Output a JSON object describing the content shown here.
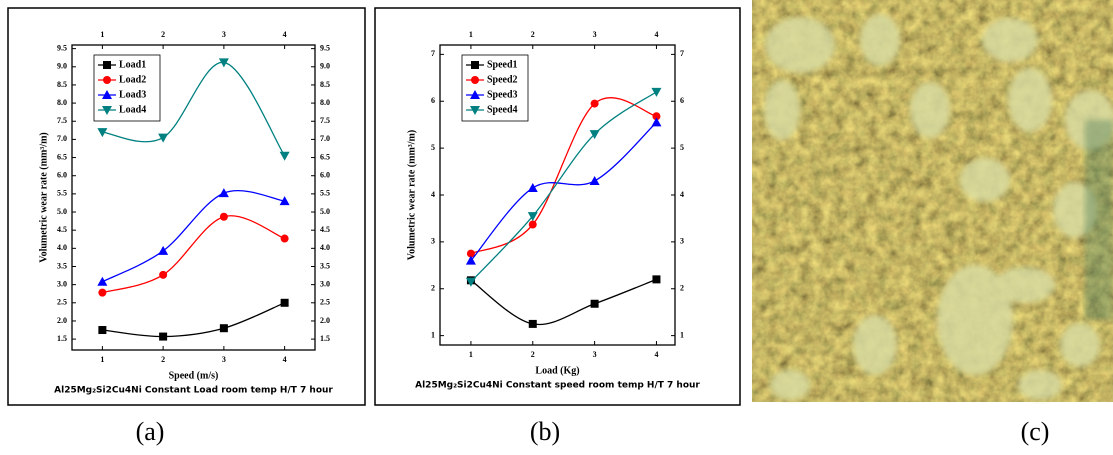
{
  "chart_data": [
    {
      "type": "line",
      "xlabel": "Speed (m/s)",
      "ylabel": "Volumetric wear rate (mm³/m)",
      "caption": "Al25Mg₂Si2Cu4Ni Constant Load room temp H/T 7 hour",
      "x": [
        1,
        2,
        3,
        4
      ],
      "xlim": [
        0.5,
        4.5
      ],
      "xticks": [
        1,
        2,
        3,
        4
      ],
      "ylim": [
        1.2,
        9.6
      ],
      "yticks": [
        1.5,
        {
          "value": 2,
          "label": "2.0"
        },
        2.5,
        {
          "value": 3,
          "label": "3.0"
        },
        3.5,
        {
          "value": 4,
          "label": "4.0"
        },
        4.5,
        {
          "value": 5,
          "label": "5.0"
        },
        5.5,
        {
          "value": 6,
          "label": "6.0"
        },
        6.5,
        {
          "value": 7,
          "label": "7.0"
        },
        7.5,
        {
          "value": 8,
          "label": "8.0"
        },
        8.5,
        {
          "value": 9,
          "label": "9.0"
        },
        9.5
      ],
      "legend": "upper left",
      "series": [
        {
          "name": "Load1",
          "color": "#000000",
          "marker": "square",
          "values": [
            1.75,
            1.57,
            1.8,
            2.5
          ]
        },
        {
          "name": "Load2",
          "color": "#ff0000",
          "marker": "circle",
          "values": [
            2.78,
            3.27,
            4.87,
            4.27
          ]
        },
        {
          "name": "Load3",
          "color": "#0000ff",
          "marker": "triangle-up",
          "values": [
            3.08,
            3.93,
            5.52,
            5.3
          ]
        },
        {
          "name": "Load4",
          "color": "#008080",
          "marker": "triangle-down",
          "values": [
            7.2,
            7.05,
            9.12,
            6.55
          ]
        }
      ]
    },
    {
      "type": "line",
      "xlabel": "Load (Kg)",
      "ylabel": "Volumetric wear rate (mm³/m)",
      "caption": "Al25Mg₂Si2Cu4Ni Constant speed room temp H/T 7 hour",
      "x": [
        1,
        2,
        3,
        4
      ],
      "xlim": [
        0.5,
        4.3
      ],
      "xticks": [
        1,
        2,
        3,
        4
      ],
      "ylim": [
        0.8,
        7.2
      ],
      "yticks": [
        1,
        2,
        3,
        4,
        5,
        6,
        7
      ],
      "legend": "upper left",
      "series": [
        {
          "name": "Speed1",
          "color": "#000000",
          "marker": "square",
          "values": [
            2.18,
            1.25,
            1.68,
            2.2
          ]
        },
        {
          "name": "Speed2",
          "color": "#ff0000",
          "marker": "circle",
          "values": [
            2.75,
            3.37,
            5.95,
            5.68
          ]
        },
        {
          "name": "Speed3",
          "color": "#0000ff",
          "marker": "triangle-up",
          "values": [
            2.6,
            4.15,
            4.3,
            5.55
          ]
        },
        {
          "name": "Speed4",
          "color": "#008080",
          "marker": "triangle-down",
          "values": [
            2.15,
            3.55,
            5.3,
            6.2
          ]
        }
      ]
    }
  ],
  "panel_labels": [
    "(a)",
    "(b)",
    "(c)"
  ]
}
